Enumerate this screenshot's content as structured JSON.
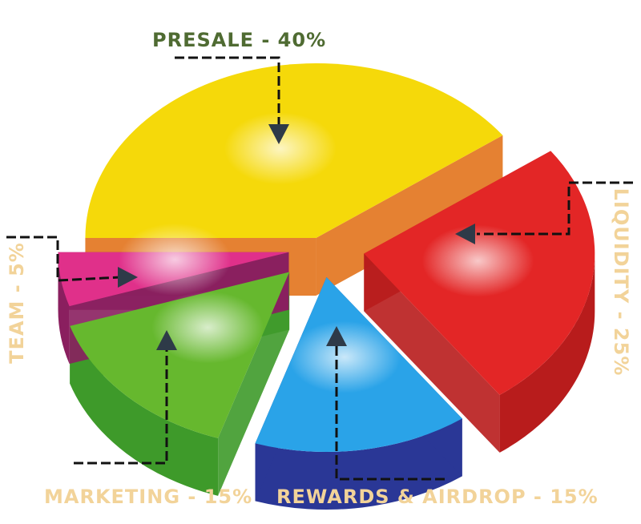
{
  "chart_data": {
    "type": "pie",
    "style": "3d-exploded",
    "title": "",
    "slices": [
      {
        "label": "PRESALE - 40%",
        "value": 40,
        "color": "#f5d90a",
        "side_color": "#e2731c",
        "label_color": "#4f6b32"
      },
      {
        "label": "LIQUIDITY - 25%",
        "value": 25,
        "color": "#e32626",
        "side_color": "#b81c1c",
        "label_color": "#f2d399"
      },
      {
        "label": "REWARDS & AIRDROP - 15%",
        "value": 15,
        "color": "#2aa3e8",
        "side_color": "#2a3796",
        "label_color": "#f2d399"
      },
      {
        "label": "MARKETING - 15%",
        "value": 15,
        "color": "#66b82e",
        "side_color": "#3e9a2a",
        "label_color": "#f2d399"
      },
      {
        "label": "TEAM - 5%",
        "value": 5,
        "color": "#e0308a",
        "side_color": "#8a1f5f",
        "label_color": "#f2d399"
      }
    ]
  }
}
